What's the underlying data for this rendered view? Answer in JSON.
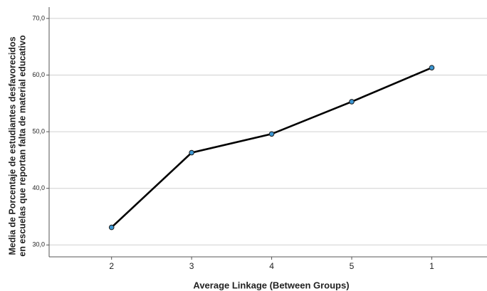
{
  "chart_data": {
    "type": "line",
    "xlabel": "Average Linkage (Between Groups)",
    "ylabel": [
      "Media de Porcentaje de estudiantes desfavorecidos",
      "en escuelas que reportan falta de material educativo"
    ],
    "categories": [
      "2",
      "3",
      "4",
      "5",
      "1"
    ],
    "values": [
      33.1,
      46.3,
      49.6,
      55.3,
      61.3
    ],
    "color": "#000000",
    "marker_color": "#3c97d3",
    "ylim": [
      27.9,
      72
    ],
    "yticks": [
      {
        "value": 30,
        "label": "30,0"
      },
      {
        "value": 40,
        "label": "40,0"
      },
      {
        "value": 50,
        "label": "50,0"
      },
      {
        "value": 60,
        "label": "60,0"
      },
      {
        "value": 70,
        "label": "70,0"
      }
    ],
    "grid": true
  }
}
